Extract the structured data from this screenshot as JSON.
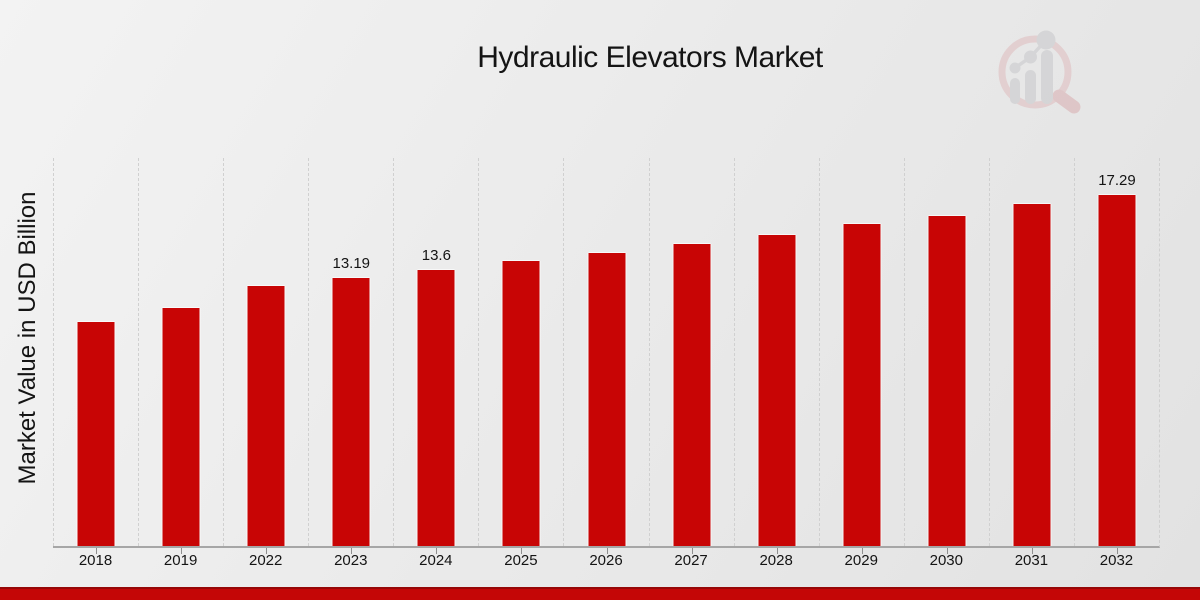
{
  "page": {
    "title": "Hydraulic Elevators Market",
    "brand_logo_icon": "magnifier-bar-chart-logo",
    "footer_bar_color": "#c40606"
  },
  "chart_data": {
    "type": "bar",
    "title": "Hydraulic Elevators Market",
    "xlabel": "",
    "ylabel": "Market Value in USD Billion",
    "categories": [
      "2018",
      "2019",
      "2022",
      "2023",
      "2024",
      "2025",
      "2026",
      "2027",
      "2028",
      "2029",
      "2030",
      "2031",
      "2032"
    ],
    "values": [
      11.03,
      11.73,
      12.84,
      13.19,
      13.6,
      14.05,
      14.43,
      14.89,
      15.34,
      15.86,
      16.29,
      16.85,
      17.29
    ],
    "data_labels": [
      "",
      "",
      "",
      "13.19",
      "13.6",
      "",
      "",
      "",
      "",
      "",
      "",
      "",
      "17.29"
    ],
    "ylim": [
      0,
      19.13
    ],
    "bar_color": "#c80505",
    "grid": "vertical-dashed",
    "legend": "none"
  }
}
